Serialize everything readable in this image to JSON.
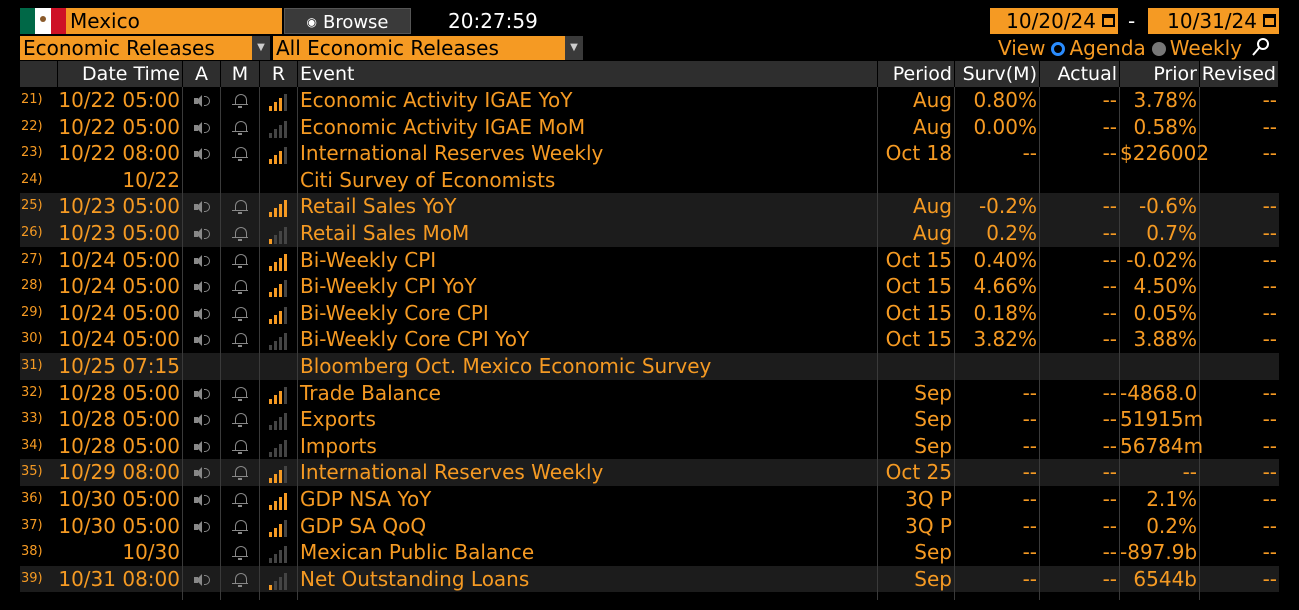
{
  "header": {
    "country": "Mexico",
    "browse_label": "Browse",
    "clock": "20:27:59",
    "date_from": "10/20/24",
    "date_separator": "-",
    "date_to": "10/31/24"
  },
  "filters": {
    "type": "Economic Releases",
    "subtype": "All Economic Releases",
    "view_label": "View",
    "view_options": [
      "Agenda",
      "Weekly"
    ],
    "view_selected": "Agenda"
  },
  "columns": {
    "datetime": "Date Time",
    "a": "A",
    "m": "M",
    "r": "R",
    "event": "Event",
    "period": "Period",
    "surv": "Surv(M)",
    "actual": "Actual",
    "prior": "Prior",
    "revised": "Revised"
  },
  "colors": {
    "accent": "#f59a23",
    "header_bg": "#2e2e2e",
    "shade_bg": "#1c1c1c",
    "radio_on": "#2a8cff"
  },
  "rows": [
    {
      "num": "21)",
      "dt": "10/22 05:00",
      "a": true,
      "m": true,
      "rel": 3,
      "event": "Economic Activity IGAE YoY",
      "period": "Aug",
      "surv": "0.80%",
      "actual": "--",
      "prior": "3.78%",
      "revised": "--",
      "shade": false
    },
    {
      "num": "22)",
      "dt": "10/22 05:00",
      "a": true,
      "m": true,
      "rel": 0,
      "event": "Economic Activity IGAE MoM",
      "period": "Aug",
      "surv": "0.00%",
      "actual": "--",
      "prior": "0.58%",
      "revised": "--",
      "shade": false
    },
    {
      "num": "23)",
      "dt": "10/22 08:00",
      "a": true,
      "m": true,
      "rel": 3,
      "event": "International Reserves Weekly",
      "period": "Oct 18",
      "surv": "--",
      "actual": "--",
      "prior": "$226002",
      "revised": "--",
      "shade": false
    },
    {
      "num": "24)",
      "dt": "10/22",
      "a": false,
      "m": false,
      "rel": -1,
      "event": " Citi Survey of Economists",
      "period": "",
      "surv": "",
      "actual": "",
      "prior": "",
      "revised": "",
      "shade": false
    },
    {
      "num": "25)",
      "dt": "10/23 05:00",
      "a": true,
      "m": true,
      "rel": 4,
      "event": "Retail Sales YoY",
      "period": "Aug",
      "surv": "-0.2%",
      "actual": "--",
      "prior": "-0.6%",
      "revised": "--",
      "shade": true
    },
    {
      "num": "26)",
      "dt": "10/23 05:00",
      "a": true,
      "m": true,
      "rel": 1,
      "event": "Retail Sales MoM",
      "period": "Aug",
      "surv": "0.2%",
      "actual": "--",
      "prior": "0.7%",
      "revised": "--",
      "shade": true
    },
    {
      "num": "27)",
      "dt": "10/24 05:00",
      "a": true,
      "m": true,
      "rel": 4,
      "event": "Bi-Weekly CPI",
      "period": "Oct 15",
      "surv": "0.40%",
      "actual": "--",
      "prior": "-0.02%",
      "revised": "--",
      "shade": false
    },
    {
      "num": "28)",
      "dt": "10/24 05:00",
      "a": true,
      "m": true,
      "rel": 3,
      "event": "Bi-Weekly CPI YoY",
      "period": "Oct 15",
      "surv": "4.66%",
      "actual": "--",
      "prior": "4.50%",
      "revised": "--",
      "shade": false
    },
    {
      "num": "29)",
      "dt": "10/24 05:00",
      "a": true,
      "m": true,
      "rel": 3,
      "event": "Bi-Weekly Core CPI",
      "period": "Oct 15",
      "surv": "0.18%",
      "actual": "--",
      "prior": "0.05%",
      "revised": "--",
      "shade": false
    },
    {
      "num": "30)",
      "dt": "10/24 05:00",
      "a": true,
      "m": true,
      "rel": 0,
      "event": "Bi-Weekly Core CPI YoY",
      "period": "Oct 15",
      "surv": "3.82%",
      "actual": "--",
      "prior": "3.88%",
      "revised": "--",
      "shade": false
    },
    {
      "num": "31)",
      "dt": "10/25 07:15",
      "a": false,
      "m": false,
      "rel": -1,
      "event": " Bloomberg Oct. Mexico Economic Survey",
      "period": "",
      "surv": "",
      "actual": "",
      "prior": "",
      "revised": "",
      "shade": true
    },
    {
      "num": "32)",
      "dt": "10/28 05:00",
      "a": true,
      "m": true,
      "rel": 3,
      "event": "Trade Balance",
      "period": "Sep",
      "surv": "--",
      "actual": "--",
      "prior": "-4868.0",
      "revised": "--",
      "shade": false
    },
    {
      "num": "33)",
      "dt": "10/28 05:00",
      "a": true,
      "m": true,
      "rel": 0,
      "event": "Exports",
      "period": "Sep",
      "surv": "--",
      "actual": "--",
      "prior": "51915m",
      "revised": "--",
      "shade": false
    },
    {
      "num": "34)",
      "dt": "10/28 05:00",
      "a": true,
      "m": true,
      "rel": 0,
      "event": "Imports",
      "period": "Sep",
      "surv": "--",
      "actual": "--",
      "prior": "56784m",
      "revised": "--",
      "shade": false
    },
    {
      "num": "35)",
      "dt": "10/29 08:00",
      "a": true,
      "m": true,
      "rel": 3,
      "event": "International Reserves Weekly",
      "period": "Oct 25",
      "surv": "--",
      "actual": "--",
      "prior": "--",
      "revised": "--",
      "shade": true
    },
    {
      "num": "36)",
      "dt": "10/30 05:00",
      "a": true,
      "m": true,
      "rel": 4,
      "event": "GDP NSA YoY",
      "period": "3Q P",
      "surv": "--",
      "actual": "--",
      "prior": "2.1%",
      "revised": "--",
      "shade": false
    },
    {
      "num": "37)",
      "dt": "10/30 05:00",
      "a": true,
      "m": true,
      "rel": 3,
      "event": "GDP SA QoQ",
      "period": "3Q P",
      "surv": "--",
      "actual": "--",
      "prior": "0.2%",
      "revised": "--",
      "shade": false
    },
    {
      "num": "38)",
      "dt": "10/30",
      "a": false,
      "m": true,
      "rel": 0,
      "event": "Mexican Public Balance",
      "period": "Sep",
      "surv": "--",
      "actual": "--",
      "prior": "-897.9b",
      "revised": "--",
      "shade": false
    },
    {
      "num": "39)",
      "dt": "10/31 08:00",
      "a": true,
      "m": true,
      "rel": 1,
      "event": "Net Outstanding Loans",
      "period": "Sep",
      "surv": "--",
      "actual": "--",
      "prior": "6544b",
      "revised": "--",
      "shade": true
    }
  ]
}
